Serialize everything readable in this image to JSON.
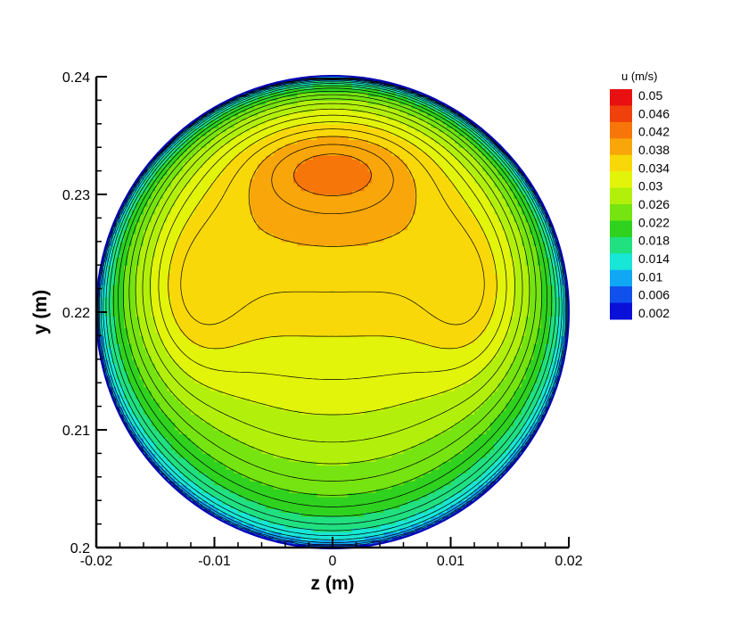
{
  "chart_data": {
    "type": "heatmap",
    "title": "",
    "xlabel": "z  (m)",
    "ylabel": "y  (m)",
    "xlim": [
      -0.02,
      0.02
    ],
    "ylim": [
      0.2,
      0.24
    ],
    "x_ticks": [
      -0.02,
      -0.01,
      0,
      0.01,
      0.02
    ],
    "x_tick_labels": [
      "-0.02",
      "-0.01",
      "0",
      "0.01",
      "0.02"
    ],
    "y_ticks": [
      0.2,
      0.21,
      0.22,
      0.23,
      0.24
    ],
    "y_tick_labels": [
      "0.2",
      "0.21",
      "0.22",
      "0.23",
      "0.24"
    ],
    "domain": {
      "shape": "circle",
      "center_z": 0,
      "center_y": 0.22,
      "radius": 0.02
    },
    "field": {
      "name": "u",
      "units": "m/s",
      "min": 0.002,
      "max": 0.05,
      "max_location": {
        "z": 0,
        "y": 0.234
      },
      "description_points": [
        {
          "z": 0,
          "y": 0.234,
          "u": 0.05
        },
        {
          "z": 0,
          "y": 0.228,
          "u": 0.043
        },
        {
          "z": 0,
          "y": 0.222,
          "u": 0.036
        },
        {
          "z": 0,
          "y": 0.215,
          "u": 0.031
        },
        {
          "z": 0,
          "y": 0.209,
          "u": 0.027
        },
        {
          "z": 0,
          "y": 0.204,
          "u": 0.016
        },
        {
          "z": -0.012,
          "y": 0.222,
          "u": 0.038
        },
        {
          "z": 0.012,
          "y": 0.222,
          "u": 0.038
        },
        {
          "z": -0.0195,
          "y": 0.22,
          "u": 0.004
        }
      ]
    },
    "legend": {
      "title": "u  (m/s)",
      "position": "top-right",
      "levels": [
        0.05,
        0.046,
        0.042,
        0.038,
        0.034,
        0.03,
        0.026,
        0.022,
        0.018,
        0.014,
        0.01,
        0.006,
        0.002
      ],
      "labels": [
        "0.05",
        "0.046",
        "0.042",
        "0.038",
        "0.034",
        "0.03",
        "0.026",
        "0.022",
        "0.018",
        "0.014",
        "0.01",
        "0.006",
        "0.002"
      ],
      "colors": [
        "#e81010",
        "#f0400c",
        "#f6760a",
        "#f8a60a",
        "#f8d808",
        "#e2f40a",
        "#b2f00c",
        "#76e410",
        "#2fd21e",
        "#20e080",
        "#18e6d6",
        "#10a8f4",
        "#1050ec",
        "#0a10d8"
      ]
    },
    "grid": false,
    "contour_lines": true
  }
}
